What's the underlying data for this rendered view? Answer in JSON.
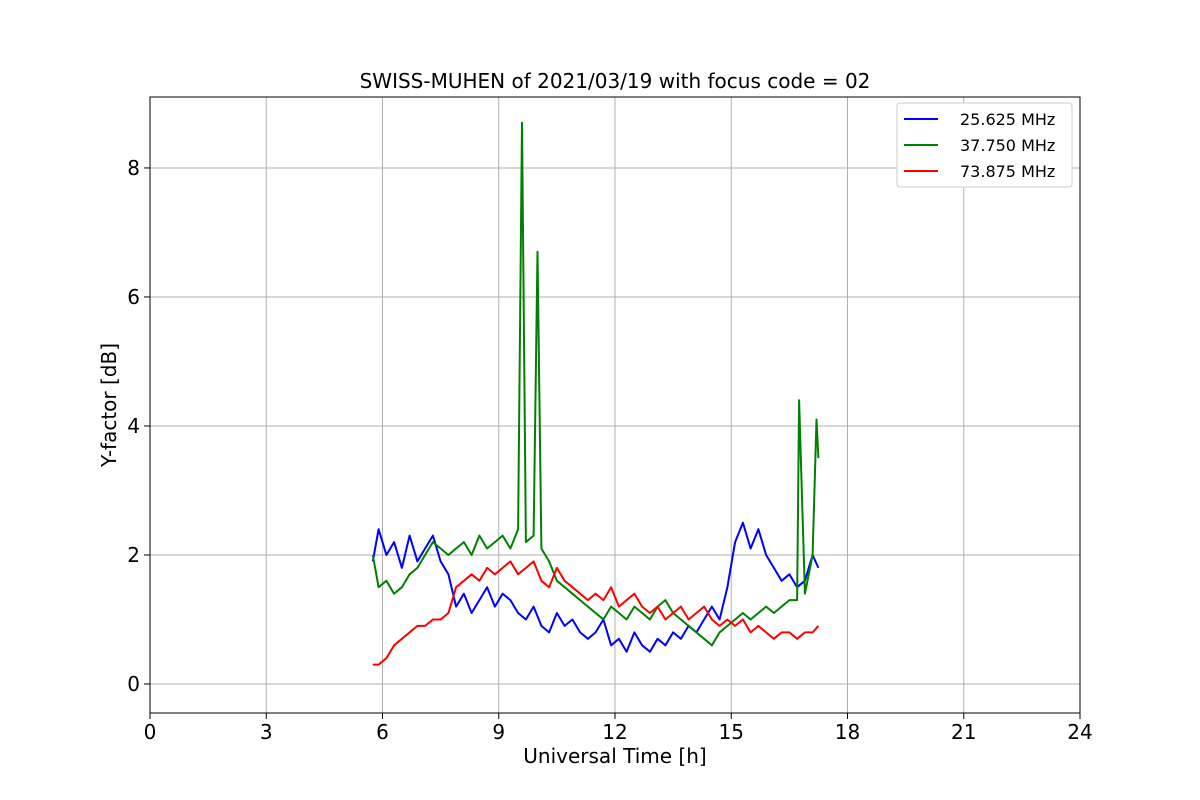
{
  "chart_data": {
    "type": "line",
    "title": "SWISS-MUHEN of 2021/03/19 with focus code = 02",
    "xlabel": "Universal Time [h]",
    "ylabel": "Y-factor [dB]",
    "xlim": [
      0,
      24
    ],
    "ylim": [
      -0.45,
      9.1
    ],
    "xticks": [
      0,
      3,
      6,
      9,
      12,
      15,
      18,
      21,
      24
    ],
    "yticks": [
      0,
      2,
      4,
      6,
      8
    ],
    "grid": true,
    "legend_position": "top-right",
    "series": [
      {
        "name": "25.625 MHz",
        "color": "#0000ff",
        "x": [
          5.75,
          5.9,
          6.1,
          6.3,
          6.5,
          6.7,
          6.9,
          7.1,
          7.3,
          7.5,
          7.7,
          7.9,
          8.1,
          8.3,
          8.5,
          8.7,
          8.9,
          9.1,
          9.3,
          9.5,
          9.7,
          9.9,
          10.1,
          10.3,
          10.5,
          10.7,
          10.9,
          11.1,
          11.3,
          11.5,
          11.7,
          11.9,
          12.1,
          12.3,
          12.5,
          12.7,
          12.9,
          13.1,
          13.3,
          13.5,
          13.7,
          13.9,
          14.1,
          14.3,
          14.5,
          14.7,
          14.9,
          15.1,
          15.3,
          15.5,
          15.7,
          15.9,
          16.1,
          16.3,
          16.5,
          16.7,
          16.9,
          17.1,
          17.25
        ],
        "y": [
          1.9,
          2.4,
          2.0,
          2.2,
          1.8,
          2.3,
          1.9,
          2.1,
          2.3,
          1.9,
          1.7,
          1.2,
          1.4,
          1.1,
          1.3,
          1.5,
          1.2,
          1.4,
          1.3,
          1.1,
          1.0,
          1.2,
          0.9,
          0.8,
          1.1,
          0.9,
          1.0,
          0.8,
          0.7,
          0.8,
          1.0,
          0.6,
          0.7,
          0.5,
          0.8,
          0.6,
          0.5,
          0.7,
          0.6,
          0.8,
          0.7,
          0.9,
          0.8,
          1.0,
          1.2,
          1.0,
          1.5,
          2.2,
          2.5,
          2.1,
          2.4,
          2.0,
          1.8,
          1.6,
          1.7,
          1.5,
          1.6,
          2.0,
          1.8
        ]
      },
      {
        "name": "37.750 MHz",
        "color": "#008000",
        "x": [
          5.75,
          5.9,
          6.1,
          6.3,
          6.5,
          6.7,
          6.9,
          7.1,
          7.3,
          7.5,
          7.7,
          7.9,
          8.1,
          8.3,
          8.5,
          8.7,
          8.9,
          9.1,
          9.3,
          9.5,
          9.6,
          9.7,
          9.9,
          10.0,
          10.1,
          10.3,
          10.5,
          10.7,
          10.9,
          11.1,
          11.3,
          11.5,
          11.7,
          11.9,
          12.1,
          12.3,
          12.5,
          12.7,
          12.9,
          13.1,
          13.3,
          13.5,
          13.7,
          13.9,
          14.1,
          14.3,
          14.5,
          14.7,
          14.9,
          15.1,
          15.3,
          15.5,
          15.7,
          15.9,
          16.1,
          16.3,
          16.5,
          16.7,
          16.75,
          16.9,
          17.1,
          17.2,
          17.25
        ],
        "y": [
          2.0,
          1.5,
          1.6,
          1.4,
          1.5,
          1.7,
          1.8,
          2.0,
          2.2,
          2.1,
          2.0,
          2.1,
          2.2,
          2.0,
          2.3,
          2.1,
          2.2,
          2.3,
          2.1,
          2.4,
          8.7,
          2.2,
          2.3,
          6.7,
          2.1,
          1.9,
          1.6,
          1.5,
          1.4,
          1.3,
          1.2,
          1.1,
          1.0,
          1.2,
          1.1,
          1.0,
          1.2,
          1.1,
          1.0,
          1.2,
          1.3,
          1.1,
          1.0,
          0.9,
          0.8,
          0.7,
          0.6,
          0.8,
          0.9,
          1.0,
          1.1,
          1.0,
          1.1,
          1.2,
          1.1,
          1.2,
          1.3,
          1.3,
          4.4,
          1.4,
          2.0,
          4.1,
          3.5
        ]
      },
      {
        "name": "73.875 MHz",
        "color": "#ff0000",
        "x": [
          5.75,
          5.9,
          6.1,
          6.3,
          6.5,
          6.7,
          6.9,
          7.1,
          7.3,
          7.5,
          7.7,
          7.9,
          8.1,
          8.3,
          8.5,
          8.7,
          8.9,
          9.1,
          9.3,
          9.5,
          9.7,
          9.9,
          10.1,
          10.3,
          10.5,
          10.7,
          10.9,
          11.1,
          11.3,
          11.5,
          11.7,
          11.9,
          12.1,
          12.3,
          12.5,
          12.7,
          12.9,
          13.1,
          13.3,
          13.5,
          13.7,
          13.9,
          14.1,
          14.3,
          14.5,
          14.7,
          14.9,
          15.1,
          15.3,
          15.5,
          15.7,
          15.9,
          16.1,
          16.3,
          16.5,
          16.7,
          16.9,
          17.1,
          17.25
        ],
        "y": [
          0.3,
          0.3,
          0.4,
          0.6,
          0.7,
          0.8,
          0.9,
          0.9,
          1.0,
          1.0,
          1.1,
          1.5,
          1.6,
          1.7,
          1.6,
          1.8,
          1.7,
          1.8,
          1.9,
          1.7,
          1.8,
          1.9,
          1.6,
          1.5,
          1.8,
          1.6,
          1.5,
          1.4,
          1.3,
          1.4,
          1.3,
          1.5,
          1.2,
          1.3,
          1.4,
          1.2,
          1.1,
          1.2,
          1.0,
          1.1,
          1.2,
          1.0,
          1.1,
          1.2,
          1.0,
          0.9,
          1.0,
          0.9,
          1.0,
          0.8,
          0.9,
          0.8,
          0.7,
          0.8,
          0.8,
          0.7,
          0.8,
          0.8,
          0.9
        ]
      }
    ]
  }
}
